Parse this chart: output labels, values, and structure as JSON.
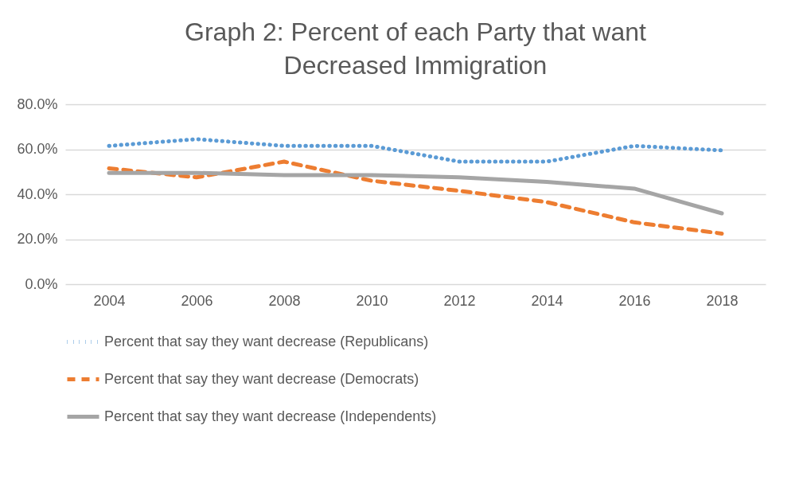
{
  "chart_data": {
    "type": "line",
    "title": "Graph 2: Percent of each Party that want Decreased Immigration",
    "categories": [
      "2004",
      "2006",
      "2008",
      "2010",
      "2012",
      "2014",
      "2016",
      "2018"
    ],
    "series": [
      {
        "name": "Percent that say they want decrease (Republicans)",
        "color": "#5b9bd5",
        "line_style": "dotted",
        "values": [
          61.5,
          64.5,
          61.5,
          61.5,
          54.5,
          54.5,
          61.5,
          59.5
        ]
      },
      {
        "name": "Percent that say they want decrease (Democrats)",
        "color": "#ed7d31",
        "line_style": "dashed",
        "values": [
          51.5,
          47.5,
          54.5,
          46,
          41.5,
          36.5,
          27.5,
          22.5
        ]
      },
      {
        "name": "Percent that say they want decrease (Independents)",
        "color": "#a5a5a5",
        "line_style": "solid",
        "values": [
          49.5,
          49.5,
          48.5,
          48.5,
          47.5,
          45.5,
          42.5,
          31.5
        ]
      }
    ],
    "ylim": [
      0,
      80
    ],
    "yticks": [
      {
        "value": 0,
        "label": "0.0%"
      },
      {
        "value": 20,
        "label": "20.0%"
      },
      {
        "value": 40,
        "label": "40.0%"
      },
      {
        "value": 60,
        "label": "60.0%"
      },
      {
        "value": 80,
        "label": "80.0%"
      }
    ],
    "grid": "y",
    "legend": "bottom",
    "marker": "none"
  }
}
